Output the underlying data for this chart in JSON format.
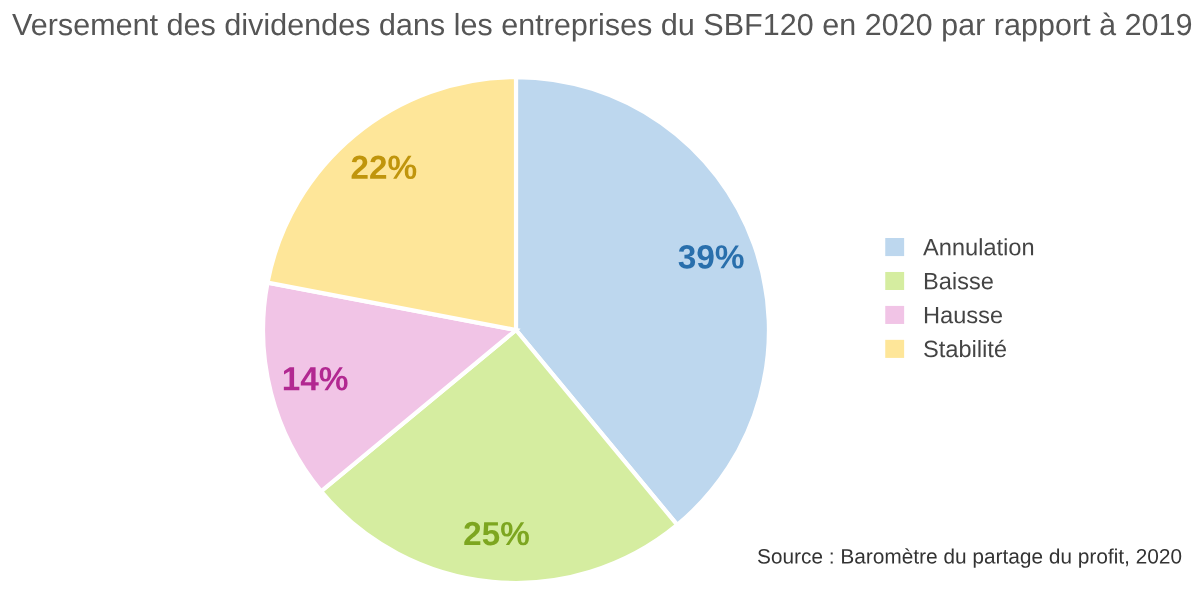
{
  "chart_data": {
    "type": "pie",
    "title": "Versement des dividendes dans les entreprises du SBF120 en 2020 par rapport à 2019",
    "categories": [
      "Annulation",
      "Baisse",
      "Hausse",
      "Stabilité"
    ],
    "values": [
      39,
      25,
      14,
      22
    ],
    "colors": [
      "#bdd7ee",
      "#d5eda0",
      "#f1c4e6",
      "#fee699"
    ],
    "value_labels": [
      "39%",
      "25%",
      "14%",
      "22%"
    ],
    "legend": "right",
    "annotations": [
      "Source : Baromètre du partage du profit, 2020"
    ]
  }
}
